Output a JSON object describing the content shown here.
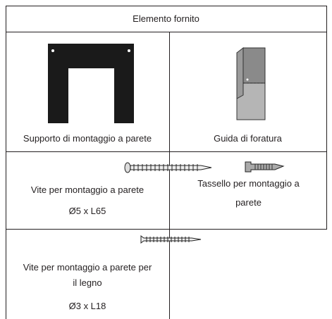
{
  "table": {
    "header": "Elemento fornito",
    "rows": [
      [
        {
          "label": "Supporto di montaggio a parete"
        },
        {
          "label": "Guida di foratura"
        }
      ],
      [
        {
          "label": "Vite per montaggio a parete",
          "size": "Ø5 x L65"
        },
        {
          "label": "Tassello per montaggio a parete"
        }
      ],
      [
        {
          "label": "Vite per montaggio a parete per il legno",
          "size": "Ø3 x L18"
        }
      ]
    ]
  }
}
